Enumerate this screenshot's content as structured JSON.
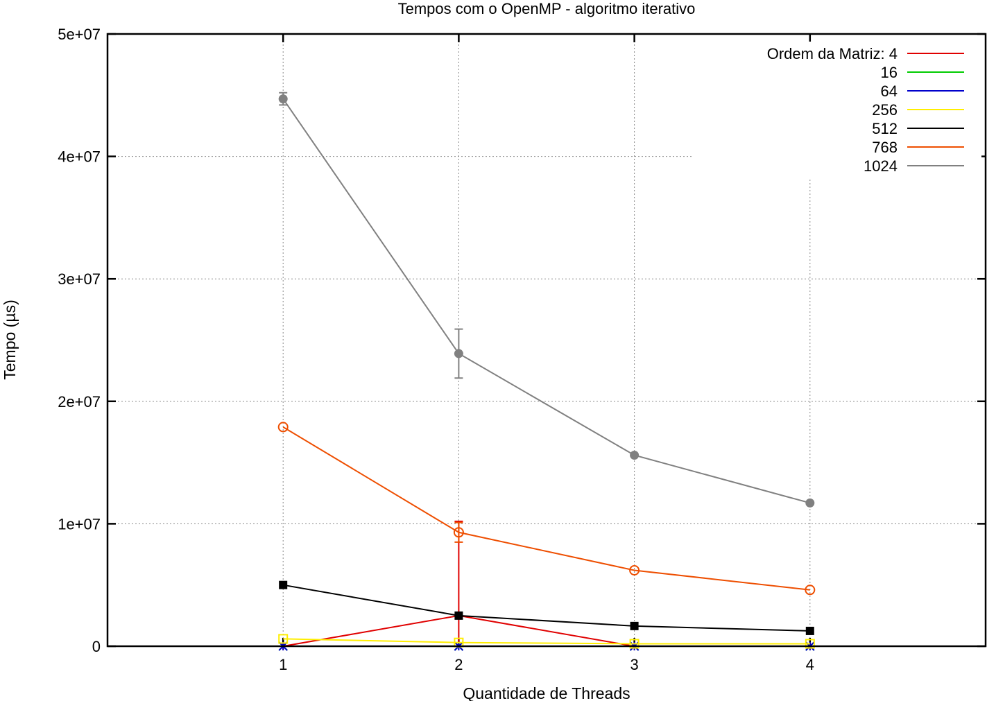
{
  "chart_data": {
    "type": "line",
    "title": "Tempos com o OpenMP - algoritmo iterativo",
    "xlabel": "Quantidade de Threads",
    "ylabel": "Tempo (µs)",
    "xlim": [
      0,
      5
    ],
    "ylim": [
      0,
      50000000
    ],
    "x_ticks": [
      1,
      2,
      3,
      4
    ],
    "y_ticks": [
      0,
      10000000,
      20000000,
      30000000,
      40000000,
      50000000
    ],
    "y_tick_labels": [
      "0",
      "1e+07",
      "2e+07",
      "3e+07",
      "4e+07",
      "5e+07"
    ],
    "grid": true,
    "legend_position": "top-right",
    "legend_title": "Ordem da Matriz:",
    "x": [
      1,
      2,
      3,
      4
    ],
    "series": [
      {
        "name": "4",
        "color": "#e00000",
        "marker": "plus",
        "values": [
          0,
          2500000,
          0,
          0
        ],
        "error": [
          0,
          7700000,
          0,
          0
        ]
      },
      {
        "name": "16",
        "color": "#00cc00",
        "marker": "cross",
        "values": [
          0,
          0,
          0,
          0
        ],
        "error": [
          0,
          0,
          0,
          0
        ]
      },
      {
        "name": "64",
        "color": "#0000cc",
        "marker": "asterisk",
        "values": [
          0,
          0,
          0,
          0
        ],
        "error": [
          0,
          0,
          0,
          0
        ]
      },
      {
        "name": "256",
        "color": "#ffee00",
        "marker": "open-square",
        "values": [
          600000,
          300000,
          200000,
          200000
        ],
        "error": [
          0,
          0,
          0,
          0
        ]
      },
      {
        "name": "512",
        "color": "#000000",
        "marker": "filled-square",
        "values": [
          5000000,
          2500000,
          1650000,
          1250000
        ],
        "error": [
          0,
          0,
          0,
          0
        ]
      },
      {
        "name": "768",
        "color": "#ee4e00",
        "marker": "open-circle",
        "values": [
          17900000,
          9300000,
          6200000,
          4600000
        ],
        "error": [
          0,
          800000,
          0,
          0
        ]
      },
      {
        "name": "1024",
        "color": "#808080",
        "marker": "filled-circle",
        "values": [
          44700000,
          23900000,
          15600000,
          11700000
        ],
        "error": [
          500000,
          2000000,
          0,
          0
        ]
      }
    ]
  }
}
